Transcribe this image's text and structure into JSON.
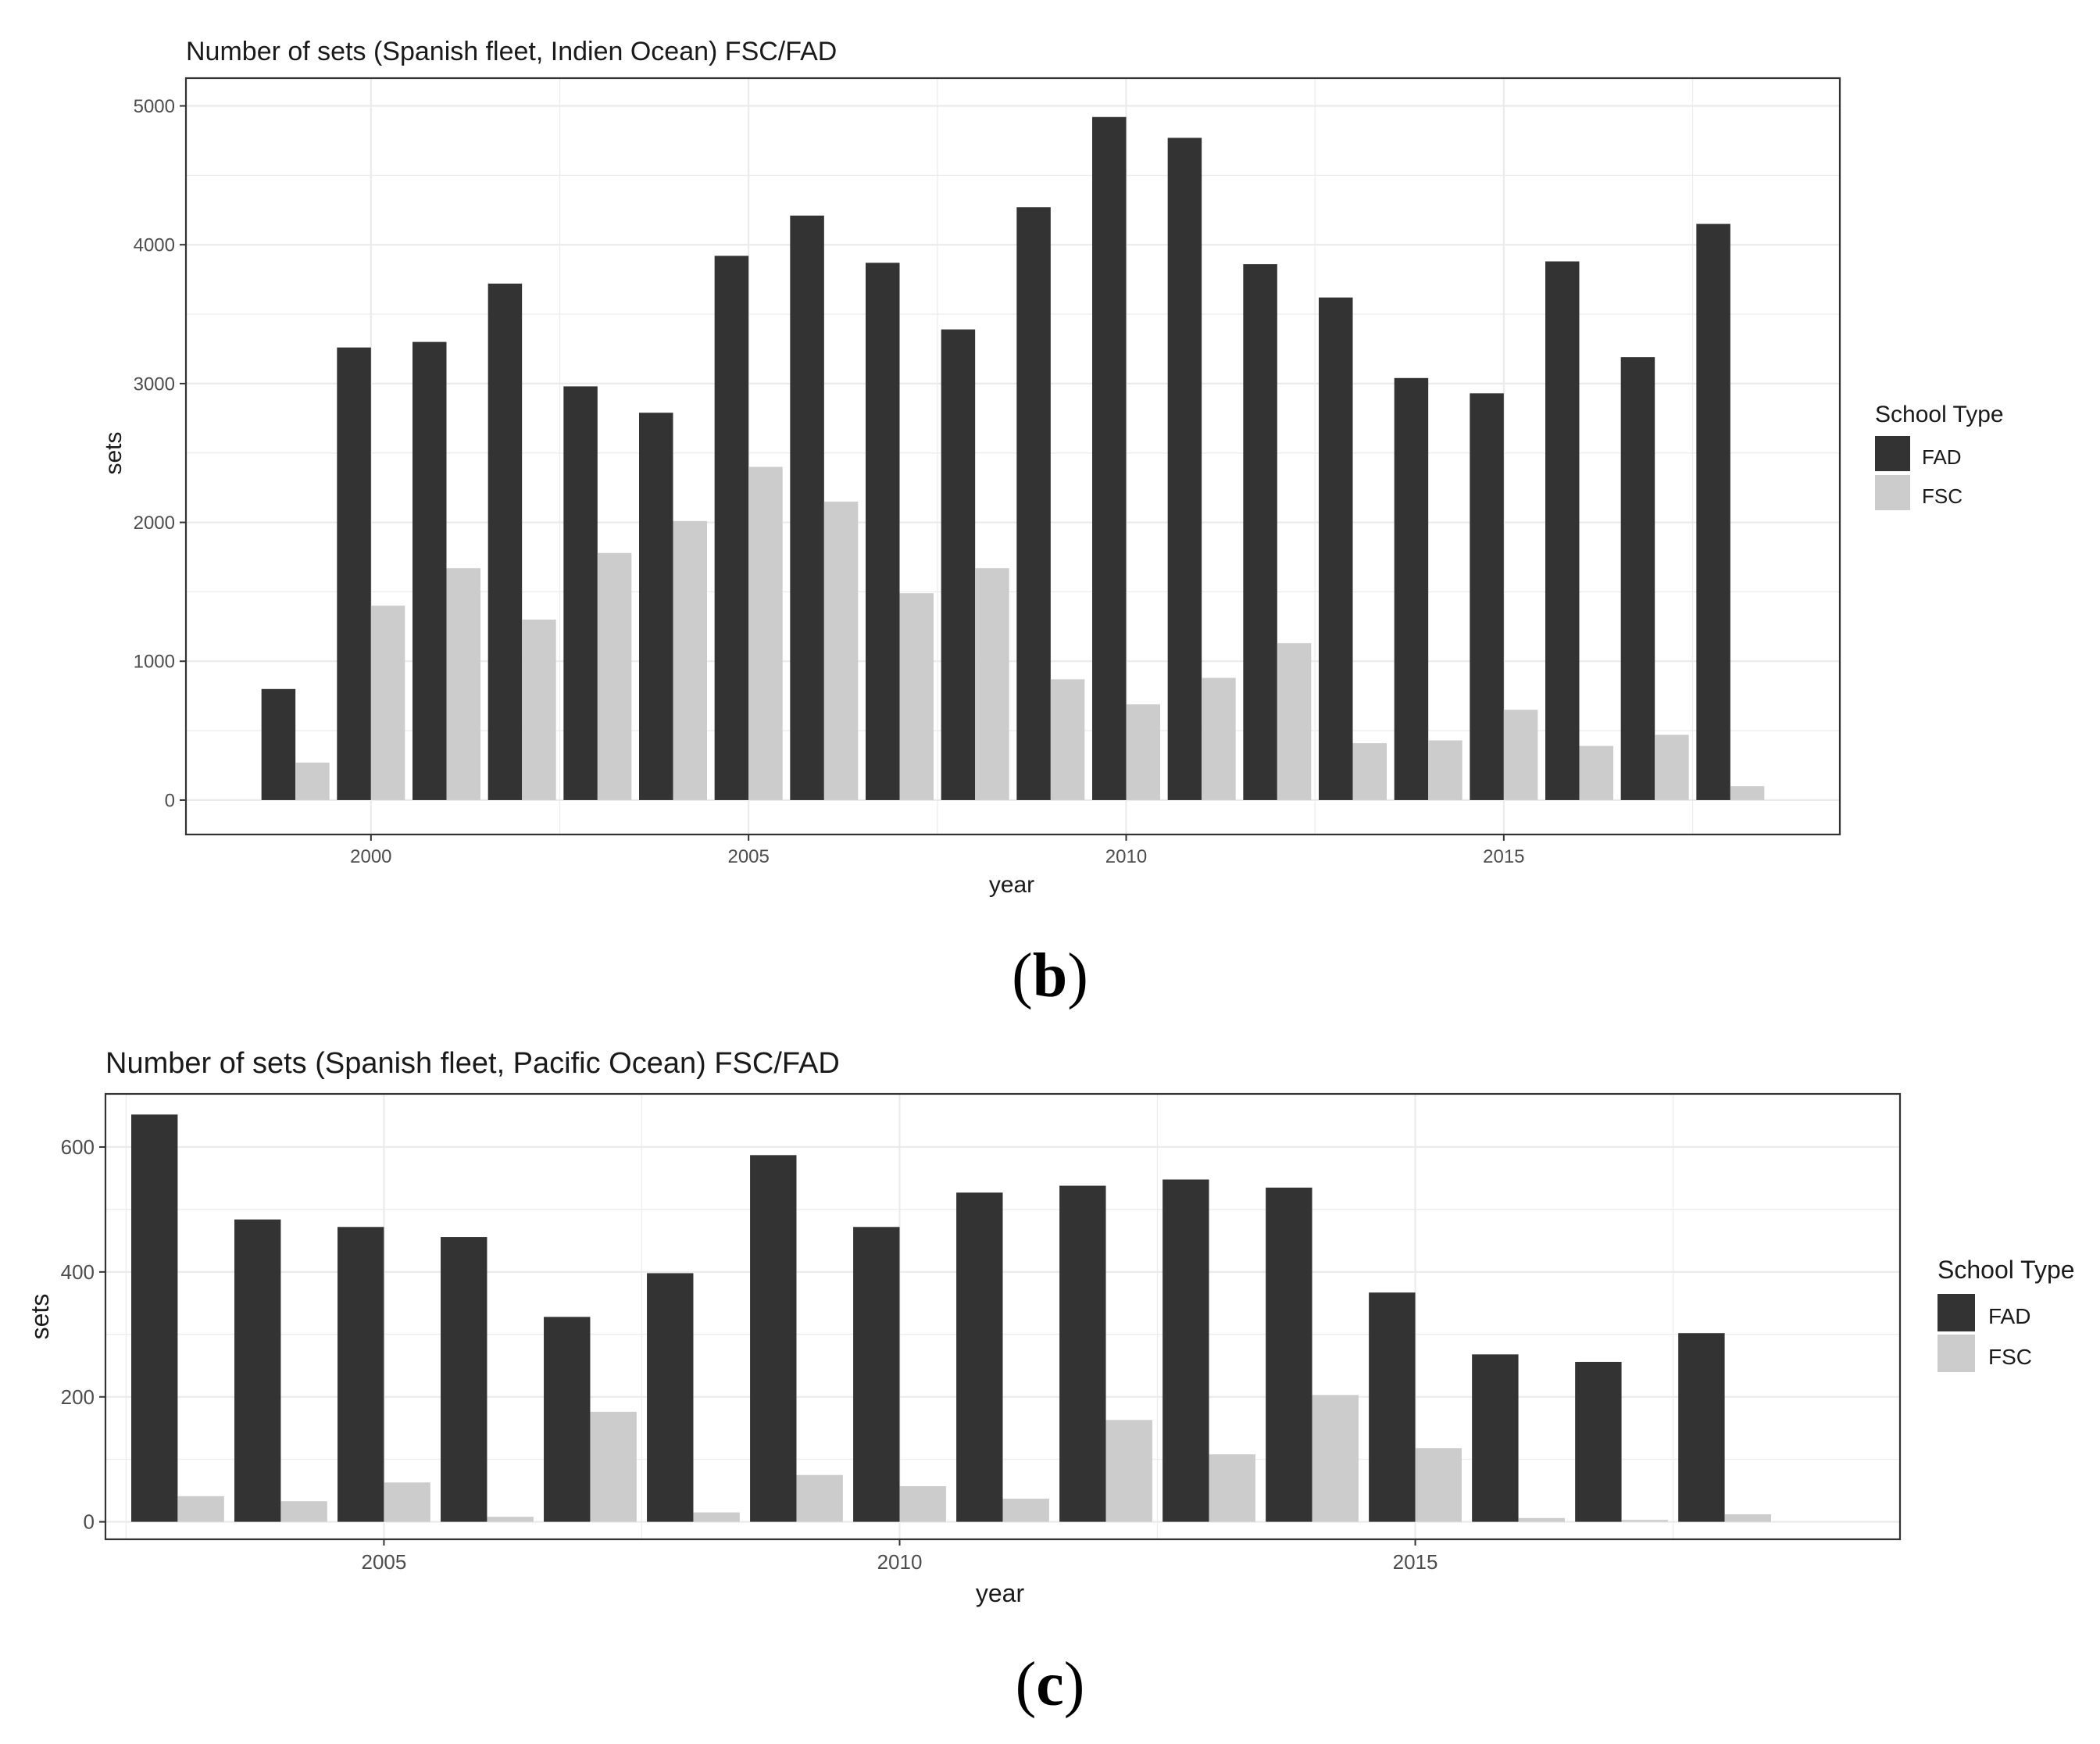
{
  "colors": {
    "FAD": "#333333",
    "FSC": "#cccccc",
    "grid": "#ebebeb",
    "panel_border": "#333333"
  },
  "chart_data": [
    {
      "type": "bar",
      "title": "Number of sets (Spanish fleet, Indien Ocean) FSC/FAD",
      "xlabel": "year",
      "ylabel": "sets",
      "panel_label_paren_open": "(",
      "panel_label": "b",
      "panel_label_paren_close": ")",
      "x": [
        1999,
        2000,
        2001,
        2002,
        2003,
        2004,
        2005,
        2006,
        2007,
        2008,
        2009,
        2010,
        2011,
        2012,
        2013,
        2014,
        2015,
        2016,
        2017,
        2018
      ],
      "series": [
        {
          "name": "FAD",
          "values": [
            800,
            3260,
            3300,
            3720,
            2980,
            2790,
            3920,
            4210,
            3870,
            3390,
            4270,
            4920,
            4770,
            3860,
            3620,
            3040,
            2930,
            3880,
            3190,
            4150
          ]
        },
        {
          "name": "FSC",
          "values": [
            270,
            1400,
            1670,
            1300,
            1780,
            2010,
            2400,
            2150,
            1490,
            1670,
            870,
            690,
            880,
            1130,
            410,
            430,
            650,
            390,
            470,
            100
          ]
        }
      ],
      "xlim": [
        1997.55,
        2019.45
      ],
      "ylim": [
        -248,
        5200
      ],
      "xticks": [
        2000,
        2005,
        2010,
        2015
      ],
      "xtick_labels": [
        "2000",
        "2005",
        "2010",
        "2015"
      ],
      "yticks": [
        0,
        1000,
        2000,
        3000,
        4000,
        5000
      ],
      "ytick_labels": [
        "0",
        "1000",
        "2000",
        "3000",
        "4000",
        "5000"
      ],
      "grid": true,
      "legend": {
        "title": "School Type",
        "entries": [
          "FAD",
          "FSC"
        ],
        "position": "right"
      }
    },
    {
      "type": "bar",
      "title": "Number of sets (Spanish fleet, Pacific Ocean) FSC/FAD",
      "xlabel": "year",
      "ylabel": "sets",
      "panel_label_paren_open": "(",
      "panel_label": "c",
      "panel_label_paren_close": ")",
      "x": [
        2003,
        2004,
        2005,
        2006,
        2007,
        2008,
        2009,
        2010,
        2011,
        2012,
        2013,
        2014,
        2015,
        2016,
        2017,
        2018
      ],
      "series": [
        {
          "name": "FAD",
          "values": [
            652,
            484,
            472,
            456,
            328,
            398,
            587,
            472,
            527,
            538,
            548,
            535,
            367,
            268,
            256,
            302
          ]
        },
        {
          "name": "FSC",
          "values": [
            41,
            33,
            63,
            8,
            176,
            15,
            75,
            57,
            37,
            163,
            108,
            203,
            118,
            6,
            3,
            12
          ]
        }
      ],
      "xlim": [
        2002.3,
        2019.7
      ],
      "ylim": [
        -28,
        685
      ],
      "xticks": [
        2005,
        2010,
        2015
      ],
      "xtick_labels": [
        "2005",
        "2010",
        "2015"
      ],
      "yticks": [
        0,
        200,
        400,
        600
      ],
      "ytick_labels": [
        "0",
        "200",
        "400",
        "600"
      ],
      "grid": true,
      "legend": {
        "title": "School Type",
        "entries": [
          "FAD",
          "FSC"
        ],
        "position": "right"
      }
    }
  ]
}
